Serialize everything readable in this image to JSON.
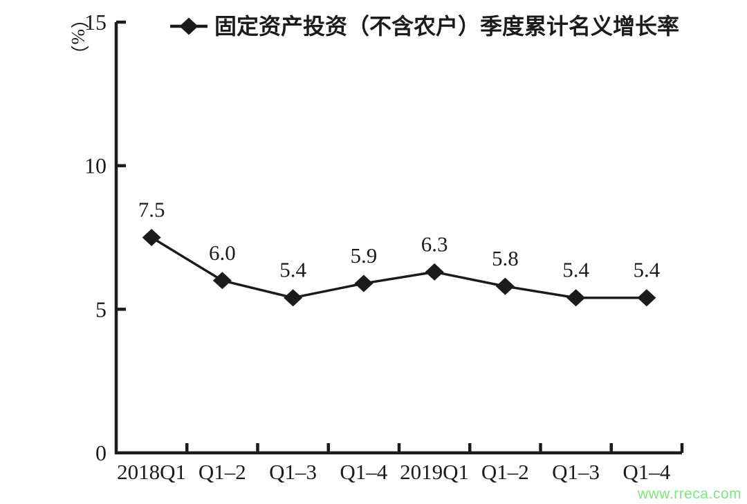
{
  "chart_data": {
    "type": "line",
    "categories": [
      "2018Q1",
      "Q1–2",
      "Q1–3",
      "Q1–4",
      "2019Q1",
      "Q1–2",
      "Q1–3",
      "Q1–4"
    ],
    "series": [
      {
        "name": "固定资产投资（不含农户）季度累计名义增长率",
        "values": [
          7.5,
          6.0,
          5.4,
          5.9,
          6.3,
          5.8,
          5.4,
          5.4
        ]
      }
    ],
    "data_labels": [
      "7.5",
      "6.0",
      "5.4",
      "5.9",
      "6.3",
      "5.8",
      "5.4",
      "5.4"
    ],
    "title": "",
    "xlabel": "",
    "ylabel": "（%）",
    "ylim": [
      0,
      15
    ],
    "yticks": [
      0,
      5,
      10,
      15
    ],
    "legend_position": "top-center",
    "marker": "diamond",
    "grid": false
  },
  "colors": {
    "ink": "#1b1b1b",
    "watermark_green": "#7ce87c"
  },
  "watermark": {
    "text": "www.rreca.com"
  }
}
